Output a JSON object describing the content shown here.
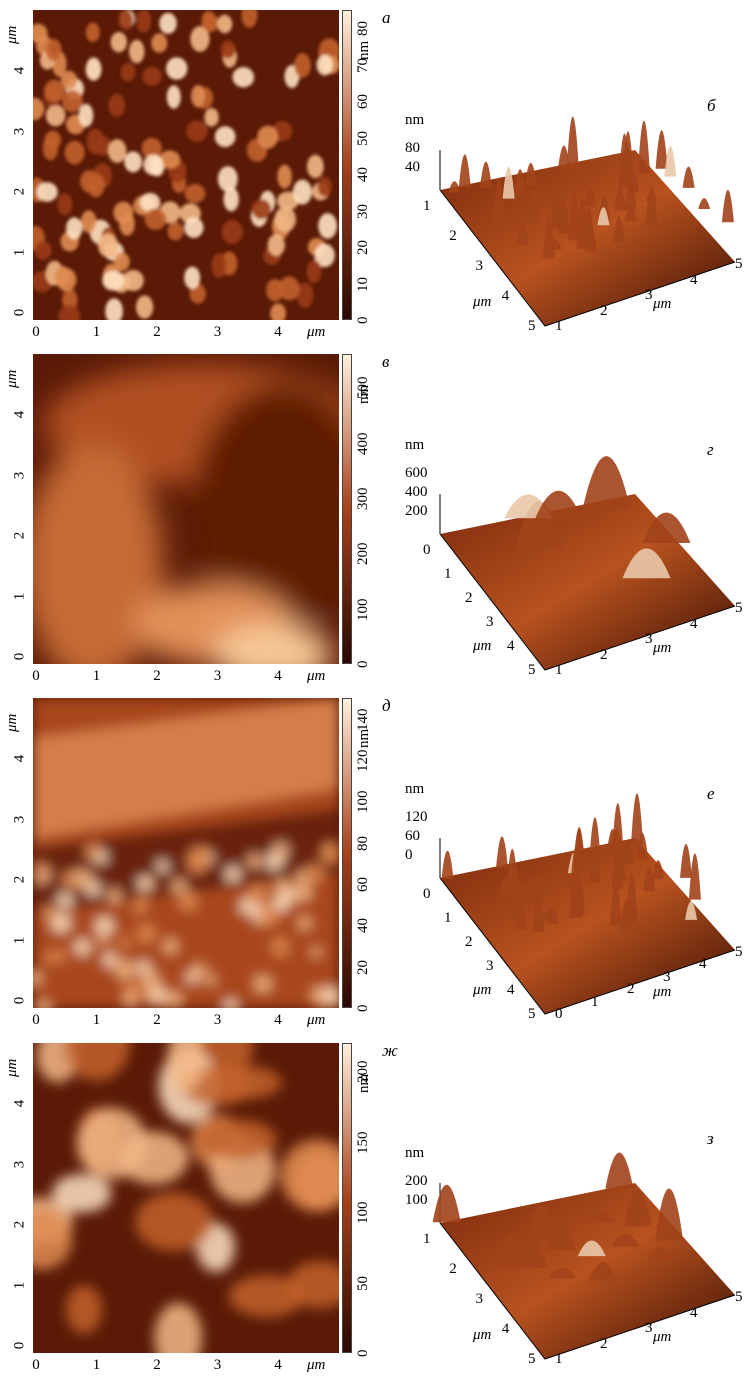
{
  "figure": {
    "panels": [
      {
        "letter_2d": "а",
        "letter_3d": "б",
        "colorbar": {
          "unit": "nm",
          "ticks": [
            "0",
            "10",
            "20",
            "30",
            "40",
            "50",
            "60",
            "70",
            "80"
          ],
          "max": 85
        },
        "x_ticks": [
          "0",
          "1",
          "2",
          "3",
          "4"
        ],
        "y_ticks": [
          "0",
          "1",
          "2",
          "3",
          "4"
        ],
        "axis_unit": "μm",
        "z_ticks_3d": [
          "40",
          "80"
        ],
        "z_unit_3d": "nm",
        "axes_3d": {
          "left": [
            "1",
            "2",
            "3",
            "4",
            "5"
          ],
          "right": [
            "1",
            "2",
            "3",
            "4",
            "5"
          ],
          "unit": "μm"
        },
        "texture": "grains"
      },
      {
        "letter_2d": "в",
        "letter_3d": "г",
        "colorbar": {
          "unit": "nm",
          "ticks": [
            "0",
            "100",
            "200",
            "300",
            "400",
            "500"
          ],
          "max": 560
        },
        "x_ticks": [
          "0",
          "1",
          "2",
          "3",
          "4"
        ],
        "y_ticks": [
          "0",
          "1",
          "2",
          "3",
          "4"
        ],
        "axis_unit": "μm",
        "z_ticks_3d": [
          "200",
          "400",
          "600"
        ],
        "z_unit_3d": "nm",
        "axes_3d": {
          "left": [
            "0",
            "1",
            "2",
            "3",
            "4",
            "5"
          ],
          "right": [
            "1",
            "2",
            "3",
            "4",
            "5"
          ],
          "unit": "μm"
        },
        "texture": "smooth"
      },
      {
        "letter_2d": "д",
        "letter_3d": "е",
        "colorbar": {
          "unit": "nm",
          "ticks": [
            "0",
            "20",
            "40",
            "60",
            "80",
            "100",
            "120",
            "140"
          ],
          "max": 150
        },
        "x_ticks": [
          "0",
          "1",
          "2",
          "3",
          "4"
        ],
        "y_ticks": [
          "0",
          "1",
          "2",
          "3",
          "4"
        ],
        "axis_unit": "μm",
        "z_ticks_3d": [
          "0",
          "60",
          "120"
        ],
        "z_unit_3d": "nm",
        "axes_3d": {
          "left": [
            "0",
            "1",
            "2",
            "3",
            "4",
            "5"
          ],
          "right": [
            "0",
            "1",
            "2",
            "3",
            "4",
            "5"
          ],
          "unit": "μm"
        },
        "texture": "ridge"
      },
      {
        "letter_2d": "ж",
        "letter_3d": "з",
        "colorbar": {
          "unit": "nm",
          "ticks": [
            "0",
            "50",
            "100",
            "150",
            "200"
          ],
          "max": 220
        },
        "x_ticks": [
          "0",
          "1",
          "2",
          "3",
          "4"
        ],
        "y_ticks": [
          "0",
          "1",
          "2",
          "3",
          "4"
        ],
        "axis_unit": "μm",
        "z_ticks_3d": [
          "100",
          "200"
        ],
        "z_unit_3d": "nm",
        "axes_3d": {
          "left": [
            "1",
            "2",
            "3",
            "4",
            "5"
          ],
          "right": [
            "1",
            "2",
            "3",
            "4",
            "5"
          ],
          "unit": "μm"
        },
        "texture": "blobs"
      }
    ],
    "colors": {
      "dark": "#2a0800",
      "mid": "#a8401a",
      "light": "#fff0dc"
    }
  }
}
